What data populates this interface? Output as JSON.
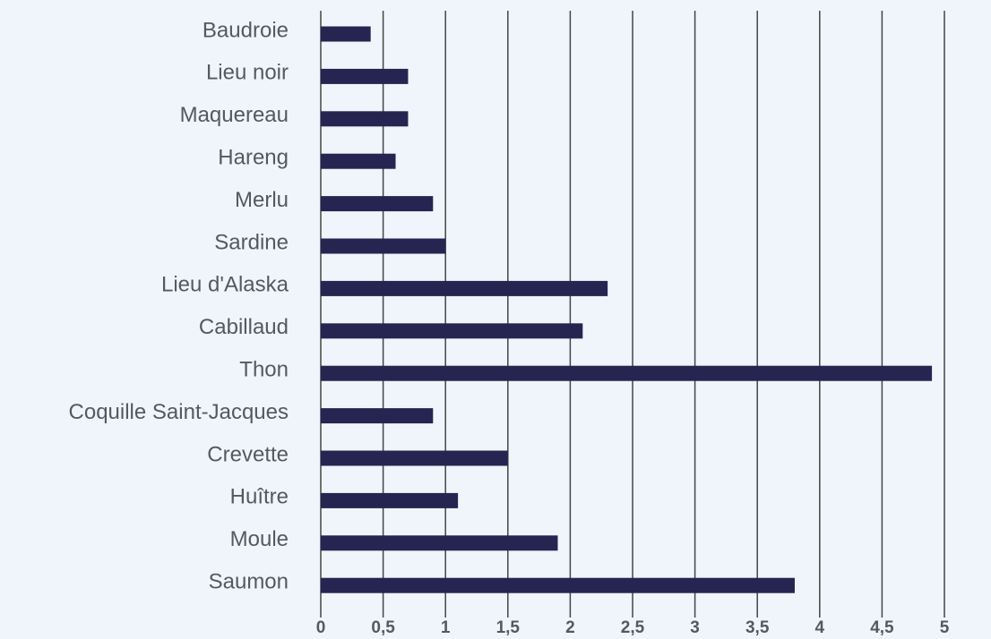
{
  "chart_data": {
    "type": "barh",
    "categories": [
      "Baudroie",
      "Lieu noir",
      "Maquereau",
      "Hareng",
      "Merlu",
      "Sardine",
      "Lieu d'Alaska",
      "Cabillaud",
      "Thon",
      "Coquille Saint-Jacques",
      "Crevette",
      "Huître",
      "Moule",
      "Saumon"
    ],
    "values": [
      0.4,
      0.7,
      0.7,
      0.6,
      0.9,
      1.0,
      2.3,
      2.1,
      4.9,
      0.9,
      1.5,
      1.1,
      1.9,
      3.8
    ],
    "color": "#262551",
    "xlim": [
      0,
      5
    ],
    "xticks": [
      0,
      {
        "value": 0.5,
        "label": "0,5"
      },
      1,
      {
        "value": 1.5,
        "label": "1,5"
      },
      2,
      {
        "value": 2.5,
        "label": "2,5"
      },
      3,
      {
        "value": 3.5,
        "label": "3,5"
      },
      4,
      {
        "value": 4.5,
        "label": "4,5"
      },
      5
    ],
    "grid": true
  }
}
